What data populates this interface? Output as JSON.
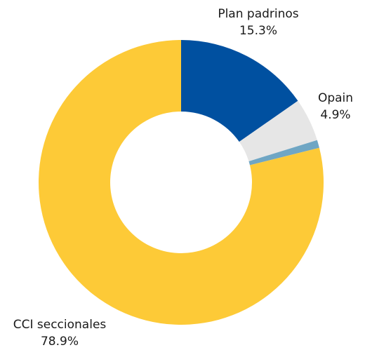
{
  "chart_data": {
    "type": "pie",
    "title": "",
    "slices": [
      {
        "label": "Plan padrinos",
        "value": 15.3,
        "display": "15.3%",
        "color": "#0050a0"
      },
      {
        "label": "Opain",
        "value": 4.9,
        "display": "4.9%",
        "color": "#e6e6e6"
      },
      {
        "label": "",
        "value": 0.9,
        "display": "",
        "color": "#6fa6c4"
      },
      {
        "label": "CCI seccionales",
        "value": 78.9,
        "display": "78.9%",
        "color": "#fdca37"
      }
    ],
    "hole": true
  }
}
